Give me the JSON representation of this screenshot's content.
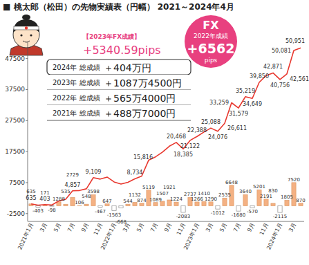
{
  "chart_data": {
    "type": "bar",
    "title": "■ 桃太郎（松田）の先物実績表（円幅） 2021～2024年4月",
    "annotations": [
      "【2023年FX成績】",
      "+5340.59pips"
    ],
    "badge": [
      "FX",
      "2022年成績",
      "+6562",
      "pips"
    ],
    "summary": [
      {
        "label": "2024年 総成績",
        "value": "＋404万円"
      },
      {
        "label": "2023年 総成績",
        "value": "＋1087万4500円"
      },
      {
        "label": "2022年 総成績",
        "value": "＋565万4000円"
      },
      {
        "label": "2021年 総成績",
        "value": "＋488万7000円"
      }
    ],
    "categories": [
      "2021年1月",
      null,
      "3月",
      null,
      "5月",
      null,
      "7月",
      null,
      "9月",
      null,
      "11月",
      null,
      "2022年1月",
      null,
      "3月",
      null,
      "5月",
      null,
      "7月",
      null,
      "9月",
      null,
      "11月",
      null,
      "2023年1月",
      null,
      "3月",
      null,
      "5月",
      null,
      "7月",
      null,
      "9月",
      null,
      "11月",
      null,
      "2024年1月",
      null,
      "3月",
      null
    ],
    "series": [
      {
        "type": "bar",
        "color": "#f4b183",
        "data_labels": true,
        "values": [
          635,
          -403,
          171,
          -98,
          1288,
          535,
          2729,
          106,
          548,
          3598,
          -467,
          647,
          -1563,
          -668,
          544,
          1132,
          874,
          5119,
          1089,
          1507,
          1921,
          1224,
          -2083,
          2737,
          1266,
          1410,
          1290,
          -1012,
          2535,
          6648,
          -1680,
          3640,
          -570,
          5201,
          2191,
          830,
          -2115,
          1805,
          7520,
          870
        ]
      },
      {
        "type": "line",
        "color": "#e8382f",
        "values": [
          635,
          232,
          403,
          305,
          1593,
          2128,
          4857,
          4963,
          5511,
          9109,
          8642,
          9289,
          7726,
          7058,
          7602,
          8734,
          9608,
          14727,
          15816,
          17323,
          19244,
          20468,
          18385,
          21122,
          22388,
          23798,
          25088,
          24076,
          26611,
          33259,
          31579,
          35219,
          34649,
          39850,
          42041,
          42871,
          40756,
          42561,
          50081,
          50951
        ],
        "value_labels": [
          "635",
          null,
          "403",
          null,
          null,
          null,
          "4,857",
          null,
          null,
          "9,109",
          null,
          null,
          null,
          null,
          null,
          "8,734",
          null,
          null,
          "15,816",
          null,
          null,
          "20,468",
          "18,385",
          "21,122",
          "22,388",
          null,
          "25,088",
          "24,076",
          "26,611",
          "33,259",
          "31,579",
          "35,219",
          "34,649",
          "39,850",
          null,
          "42,871",
          "40,756",
          "42,561",
          "50,081",
          "50,951"
        ]
      }
    ],
    "ylim": [
      -5000,
      53000
    ],
    "yticks": [
      -2500,
      7500,
      17500,
      27500,
      37500,
      47500
    ],
    "grid": false
  }
}
